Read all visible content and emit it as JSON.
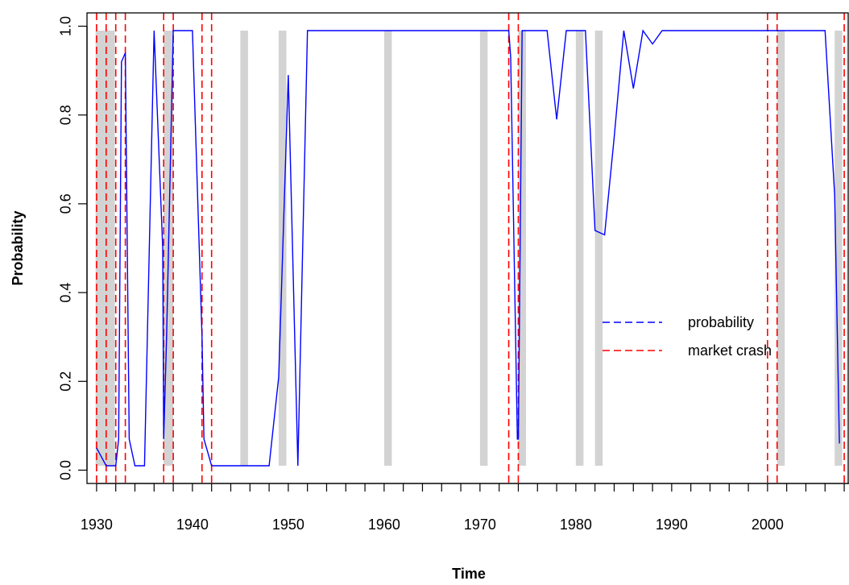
{
  "chart_data": {
    "type": "line",
    "xlabel": "Time",
    "ylabel": "Probability",
    "xlim": [
      1929,
      2008.5
    ],
    "ylim": [
      -0.03,
      1.03
    ],
    "x_ticks": [
      1930,
      1940,
      1950,
      1960,
      1970,
      1980,
      1990,
      2000
    ],
    "x_tick_labels": [
      "1930",
      "1940",
      "1950",
      "1960",
      "1970",
      "1980",
      "1990",
      "2000"
    ],
    "y_ticks": [
      0.0,
      0.2,
      0.4,
      0.6,
      0.8,
      1.0
    ],
    "y_tick_labels": [
      "0.0",
      "0.2",
      "0.4",
      "0.6",
      "0.8",
      "1.0"
    ],
    "grid": false,
    "legend_position": "center-right",
    "colors": {
      "probability": "#0000ff",
      "crash": "#ff0000",
      "shading": "#d3d3d3"
    },
    "series": [
      {
        "name": "probability",
        "x": [
          1930.0,
          1931.0,
          1932.0,
          1932.3,
          1932.6,
          1933.0,
          1933.4,
          1934.0,
          1935.0,
          1936.0,
          1936.9,
          1937.0,
          1937.3,
          1938.0,
          1938.2,
          1939.0,
          1940.0,
          1941.0,
          1941.2,
          1942.0,
          1943.0,
          1944.0,
          1945.0,
          1946.0,
          1947.0,
          1948.0,
          1949.0,
          1950.0,
          1951.0,
          1952.0,
          1953.0,
          1960.0,
          1970.0,
          1973.0,
          1973.2,
          1973.9,
          1974.0,
          1974.4,
          1975.0,
          1976.0,
          1977.0,
          1978.0,
          1979.0,
          1980.0,
          1981.0,
          1982.0,
          1983.0,
          1984.0,
          1985.0,
          1986.0,
          1987.0,
          1988.0,
          1989.0,
          1990.0,
          2000.0,
          2006.0,
          2007.0,
          2007.5
        ],
        "values": [
          0.05,
          0.01,
          0.01,
          0.07,
          0.92,
          0.94,
          0.07,
          0.01,
          0.01,
          0.99,
          0.5,
          0.07,
          0.3,
          0.99,
          0.99,
          0.99,
          0.99,
          0.3,
          0.07,
          0.01,
          0.01,
          0.01,
          0.01,
          0.01,
          0.01,
          0.01,
          0.21,
          0.89,
          0.01,
          0.99,
          0.99,
          0.99,
          0.99,
          0.99,
          0.93,
          0.07,
          0.07,
          0.99,
          0.99,
          0.99,
          0.99,
          0.79,
          0.99,
          0.99,
          0.99,
          0.54,
          0.53,
          0.75,
          0.99,
          0.86,
          0.99,
          0.96,
          0.99,
          0.99,
          0.99,
          0.99,
          0.62,
          0.06
        ]
      },
      {
        "name": "market crash",
        "crash_years": [
          1930,
          1931,
          1932,
          1933,
          1937,
          1938,
          1941,
          1942,
          1973,
          1974,
          2000,
          2001,
          2008
        ]
      }
    ],
    "shaded_periods": [
      [
        1929.9,
        1931.9
      ],
      [
        1937.0,
        1938.0
      ],
      [
        1945.0,
        1945.8
      ],
      [
        1949.0,
        1949.8
      ],
      [
        1960.0,
        1960.8
      ],
      [
        1970.0,
        1970.8
      ],
      [
        1974.0,
        1974.8
      ],
      [
        1980.0,
        1980.8
      ],
      [
        1982.0,
        1982.8
      ],
      [
        2001.0,
        2001.8
      ],
      [
        2007.0,
        2007.8
      ]
    ],
    "legend": [
      "probability",
      "market crash"
    ]
  }
}
